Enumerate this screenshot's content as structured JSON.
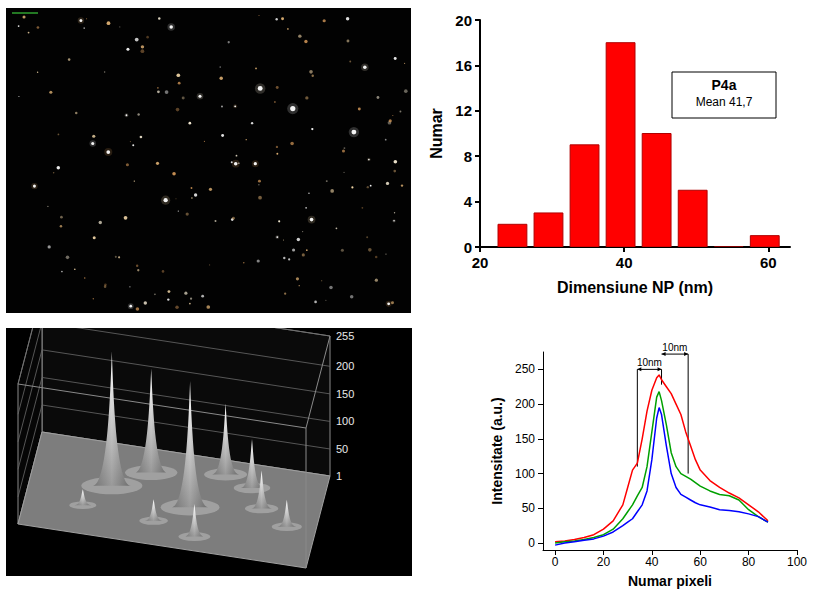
{
  "chart_data": [
    {
      "type": "histogram",
      "xlabel": "Dimensiune NP (nm)",
      "ylabel": "Numar",
      "bins": [
        22,
        27,
        32,
        37,
        42,
        47,
        52,
        57,
        62
      ],
      "values": [
        2,
        3,
        9,
        18,
        10,
        5,
        0,
        1
      ],
      "color": "#ff0000",
      "xlim": [
        20,
        63
      ],
      "xticks": [
        20,
        40,
        60
      ],
      "ylim": [
        0,
        20
      ],
      "yticks": [
        0,
        4,
        8,
        12,
        16,
        20
      ],
      "annotations": [
        {
          "title": "P4a",
          "text": "Mean 41,7"
        }
      ],
      "grid": false
    },
    {
      "type": "surface",
      "xlim": [
        0,
        100
      ],
      "ylim": [
        0,
        100
      ],
      "zlim": [
        1,
        255
      ],
      "zticks": [
        1,
        50,
        100,
        150,
        200,
        255
      ],
      "peaks": [
        {
          "x": 28,
          "y": 55,
          "z": 245
        },
        {
          "x": 40,
          "y": 75,
          "z": 190
        },
        {
          "x": 56,
          "y": 45,
          "z": 230
        },
        {
          "x": 65,
          "y": 85,
          "z": 130
        },
        {
          "x": 75,
          "y": 75,
          "z": 90
        },
        {
          "x": 80,
          "y": 55,
          "z": 70
        },
        {
          "x": 45,
          "y": 25,
          "z": 40
        },
        {
          "x": 20,
          "y": 30,
          "z": 30
        },
        {
          "x": 90,
          "y": 40,
          "z": 50
        },
        {
          "x": 60,
          "y": 15,
          "z": 60
        }
      ]
    },
    {
      "type": "line",
      "xlabel": "Numar pixeli",
      "ylabel": "Intensitate (a.u.)",
      "x": [
        0,
        4,
        8,
        12,
        16,
        20,
        24,
        28,
        30,
        32,
        34,
        36,
        38,
        40,
        42,
        43,
        44,
        46,
        48,
        50,
        52,
        54,
        56,
        58,
        60,
        64,
        68,
        72,
        76,
        80,
        84,
        88
      ],
      "series": [
        {
          "color": "#ff0000",
          "values": [
            2,
            3,
            5,
            8,
            12,
            20,
            32,
            55,
            80,
            105,
            115,
            150,
            190,
            220,
            238,
            242,
            235,
            225,
            215,
            200,
            185,
            160,
            140,
            120,
            105,
            90,
            80,
            72,
            65,
            55,
            45,
            32
          ]
        },
        {
          "color": "#00a000",
          "values": [
            0,
            2,
            3,
            5,
            8,
            12,
            20,
            35,
            45,
            55,
            68,
            80,
            110,
            160,
            210,
            218,
            205,
            170,
            130,
            110,
            100,
            96,
            92,
            87,
            82,
            75,
            70,
            68,
            62,
            48,
            38,
            30
          ]
        },
        {
          "color": "#0000ff",
          "values": [
            -3,
            0,
            2,
            4,
            6,
            10,
            16,
            25,
            30,
            35,
            45,
            55,
            75,
            120,
            180,
            195,
            185,
            140,
            100,
            80,
            70,
            66,
            62,
            58,
            55,
            52,
            48,
            47,
            45,
            42,
            38,
            30
          ]
        }
      ],
      "xlim": [
        -5,
        100
      ],
      "xticks": [
        0,
        20,
        40,
        60,
        80,
        100
      ],
      "ylim": [
        -10,
        275
      ],
      "yticks": [
        0,
        50,
        100,
        150,
        200,
        250
      ],
      "annotations": [
        {
          "text": "10nm",
          "x": [
            34,
            44
          ],
          "y": 250
        },
        {
          "text": "10nm",
          "x": [
            44,
            55
          ],
          "y": 272
        }
      ],
      "vlines": [
        {
          "x": 34,
          "y": [
            110,
            250
          ]
        },
        {
          "x": 44,
          "y": [
            228,
            250
          ]
        },
        {
          "x": 55,
          "y": [
            100,
            272
          ]
        }
      ],
      "grid": false
    }
  ]
}
